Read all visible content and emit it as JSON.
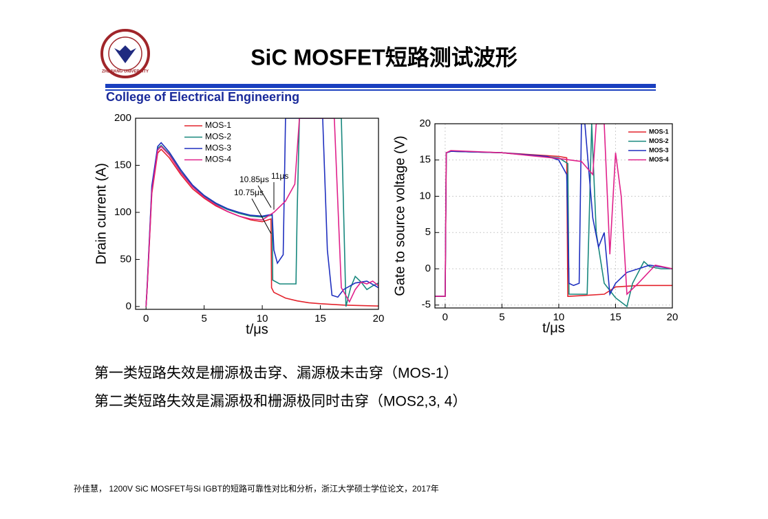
{
  "title": "SiC MOSFET短路测试波形",
  "logo_text": "ZHEJIANG UNIVERSITY",
  "college": "College of Electrical Engineering",
  "bullets": [
    "第一类短路失效是栅源极击穿、漏源极未击穿（MOS-1）",
    "第二类短路失效是漏源极和栅源极同时击穿（MOS2,3, 4）"
  ],
  "footer": "孙佳慧， 1200V SiC MOSFET与Si IGBT的短路可靠性对比和分析，浙江大学硕士学位论文，2017年",
  "chart_data": [
    {
      "type": "line",
      "xlabel": "t/μs",
      "ylabel": "Drain current (A)",
      "xlim": [
        -0.9,
        20
      ],
      "ylim": [
        -3,
        200
      ],
      "xticks": [
        0,
        5,
        10,
        15,
        20
      ],
      "yticks": [
        0,
        50,
        100,
        150,
        200
      ],
      "grid": false,
      "legend": "upper center",
      "annotations": [
        "10.85μs",
        "10.75μs",
        "11μs"
      ],
      "series": [
        {
          "name": "MOS-1",
          "color": "#e3222b",
          "x": [
            0,
            0.1,
            0.5,
            1,
            1.3,
            2,
            3,
            4,
            5,
            6,
            7,
            8,
            9,
            10,
            10.75,
            10.8,
            11,
            12,
            13,
            14,
            15,
            17,
            20
          ],
          "values": [
            0,
            20,
            120,
            163,
            167,
            158,
            140,
            125,
            115,
            107,
            101,
            96,
            92,
            90,
            93,
            20,
            15,
            9,
            6,
            4,
            3,
            1.5,
            0.5
          ]
        },
        {
          "name": "MOS-2",
          "color": "#17877d",
          "x": [
            0,
            0.1,
            0.5,
            1,
            1.3,
            2,
            3,
            4,
            5,
            6,
            7,
            8,
            9,
            10,
            10.85,
            10.9,
            11.5,
            12.9,
            13,
            13.2,
            16.8,
            17.2,
            17.6,
            18,
            18.5,
            19,
            19.5,
            20
          ],
          "values": [
            0,
            22,
            125,
            168,
            171,
            162,
            143,
            128,
            117,
            109,
            103,
            99,
            96,
            95,
            97,
            28,
            24,
            24,
            100,
            200,
            200,
            0,
            20,
            32,
            26,
            18,
            22,
            25
          ]
        },
        {
          "name": "MOS-3",
          "color": "#1f2fbf",
          "x": [
            0,
            0.1,
            0.5,
            1,
            1.3,
            2,
            3,
            4,
            5,
            6,
            7,
            8,
            9,
            10,
            10.85,
            11,
            11.3,
            11.8,
            12,
            15.2,
            15.6,
            16,
            16.5,
            17,
            18,
            19,
            20
          ],
          "values": [
            0,
            22,
            128,
            170,
            174,
            164,
            145,
            129,
            118,
            110,
            104,
            100,
            97,
            96,
            98,
            60,
            46,
            55,
            200,
            200,
            60,
            12,
            10,
            18,
            25,
            27,
            20
          ]
        },
        {
          "name": "MOS-4",
          "color": "#e0208a",
          "x": [
            0,
            0.1,
            0.5,
            1,
            1.3,
            2,
            3,
            4,
            5,
            6,
            7,
            8,
            9,
            10,
            11,
            12,
            12.8,
            13.2,
            16.2,
            16.8,
            17.5,
            18,
            18.5,
            19,
            19.5,
            20
          ],
          "values": [
            0,
            20,
            122,
            166,
            170,
            161,
            142,
            127,
            116,
            108,
            101,
            96,
            93,
            92,
            100,
            112,
            130,
            200,
            200,
            20,
            5,
            18,
            26,
            24,
            27,
            22
          ]
        }
      ]
    },
    {
      "type": "line",
      "xlabel": "t/μs",
      "ylabel": "Gate to source voltage (V)",
      "xlim": [
        -0.9,
        20
      ],
      "ylim": [
        -5.4,
        20
      ],
      "xticks": [
        0,
        5,
        10,
        15,
        20
      ],
      "yticks": [
        -5,
        0,
        5,
        10,
        15,
        20
      ],
      "grid": true,
      "legend": "upper right",
      "series": [
        {
          "name": "MOS-1",
          "color": "#e3222b",
          "x": [
            -0.9,
            0,
            0.1,
            0.5,
            5,
            10,
            10.7,
            10.8,
            12,
            14,
            15,
            17,
            20
          ],
          "values": [
            -3.8,
            -3.8,
            16,
            16.2,
            16,
            15.5,
            15.3,
            -3.8,
            -3.7,
            -3.5,
            -2.5,
            -2.3,
            -2.3
          ]
        },
        {
          "name": "MOS-2",
          "color": "#17877d",
          "x": [
            -0.9,
            0,
            0.1,
            0.5,
            5,
            10,
            10.8,
            10.9,
            12.5,
            12.7,
            12.9,
            13.3,
            14,
            15,
            16,
            16.5,
            17.5,
            18,
            19,
            20
          ],
          "values": [
            -3.8,
            -3.8,
            16,
            16.2,
            16,
            15.3,
            14.5,
            -3.5,
            -3.5,
            8,
            20,
            5,
            -2,
            -4,
            -5.2,
            -2,
            1,
            0.3,
            0,
            0
          ]
        },
        {
          "name": "MOS-3",
          "color": "#1f2fbf",
          "x": [
            -0.9,
            0,
            0.1,
            0.5,
            5,
            9,
            10,
            10.7,
            10.9,
            11.3,
            11.8,
            12,
            12.3,
            13,
            13.5,
            14,
            14.5,
            15,
            16,
            18,
            20
          ],
          "values": [
            -3.8,
            -3.8,
            16,
            16.2,
            16,
            15.5,
            15,
            13,
            -2,
            -2.3,
            -2,
            20,
            20,
            7,
            3,
            5,
            -3.5,
            -2,
            -0.5,
            0.5,
            0
          ]
        },
        {
          "name": "MOS-4",
          "color": "#e0208a",
          "x": [
            -0.9,
            0,
            0.1,
            0.5,
            5,
            10,
            12,
            13,
            13.3,
            14,
            14.5,
            15,
            15.5,
            16,
            17,
            18.5,
            20
          ],
          "values": [
            -3.8,
            -3.8,
            16,
            16.3,
            16,
            15.2,
            14.8,
            13,
            20,
            20,
            2,
            16,
            10,
            -3.5,
            -2,
            0.5,
            0
          ]
        }
      ]
    }
  ]
}
